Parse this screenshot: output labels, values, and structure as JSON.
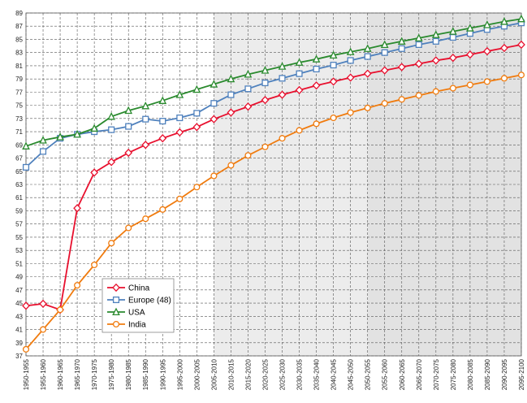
{
  "chart_data": {
    "type": "line",
    "title": "",
    "xlabel": "",
    "ylabel": "",
    "ylim": [
      37,
      89
    ],
    "y_ticks": [
      37,
      39,
      41,
      43,
      45,
      47,
      49,
      51,
      53,
      55,
      57,
      59,
      61,
      63,
      65,
      67,
      69,
      71,
      73,
      75,
      77,
      79,
      81,
      83,
      85,
      87,
      89
    ],
    "categories": [
      "1950-1955",
      "1955-1960",
      "1960-1965",
      "1965-1970",
      "1970-1975",
      "1975-1980",
      "1980-1985",
      "1985-1990",
      "1990-1995",
      "1995-2000",
      "2000-2005",
      "2005-2010",
      "2010-2015",
      "2015-2020",
      "2020-2025",
      "2025-2030",
      "2030-2035",
      "2035-2040",
      "2040-2045",
      "2045-2050",
      "2050-2055",
      "2055-2060",
      "2060-2065",
      "2065-2070",
      "2070-2075",
      "2075-2080",
      "2080-2085",
      "2085-2090",
      "2090-2095",
      "2095-2100"
    ],
    "grid": true,
    "legend_position": "bottom-left",
    "shaded_regions": [
      {
        "from": "2005-2010",
        "to": "2050-2055",
        "color": "#ececec"
      },
      {
        "from": "2050-2055",
        "to": "2095-2100",
        "color": "#e2e2e2"
      }
    ],
    "series": [
      {
        "name": "China",
        "color": "#e8102e",
        "marker": "diamond",
        "values": [
          44.6,
          44.9,
          44.0,
          59.4,
          64.8,
          66.4,
          67.8,
          69.0,
          70.0,
          70.9,
          71.7,
          72.9,
          73.9,
          74.8,
          75.8,
          76.6,
          77.3,
          78.0,
          78.6,
          79.2,
          79.8,
          80.3,
          80.8,
          81.3,
          81.8,
          82.2,
          82.7,
          83.2,
          83.7,
          84.2
        ]
      },
      {
        "name": "Europe (48)",
        "color": "#4f81bd",
        "marker": "square",
        "values": [
          65.6,
          68.0,
          70.0,
          70.6,
          71.0,
          71.3,
          71.8,
          72.9,
          72.6,
          73.1,
          73.8,
          75.3,
          76.6,
          77.5,
          78.4,
          79.1,
          79.8,
          80.5,
          81.1,
          81.8,
          82.4,
          83.0,
          83.6,
          84.2,
          84.7,
          85.3,
          85.9,
          86.5,
          87.0,
          87.5
        ]
      },
      {
        "name": "USA",
        "color": "#2a8a2e",
        "marker": "triangle",
        "values": [
          68.8,
          69.7,
          70.2,
          70.6,
          71.5,
          73.3,
          74.2,
          74.9,
          75.7,
          76.6,
          77.4,
          78.2,
          79.0,
          79.7,
          80.3,
          80.9,
          81.5,
          82.0,
          82.6,
          83.1,
          83.6,
          84.2,
          84.7,
          85.2,
          85.7,
          86.2,
          86.7,
          87.2,
          87.7,
          88.1
        ]
      },
      {
        "name": "India",
        "color": "#f07b0e",
        "marker": "circle",
        "values": [
          38.0,
          41.0,
          44.0,
          47.7,
          50.8,
          54.1,
          56.4,
          57.8,
          59.2,
          60.8,
          62.6,
          64.3,
          65.9,
          67.4,
          68.7,
          70.0,
          71.2,
          72.2,
          73.1,
          73.9,
          74.6,
          75.3,
          75.9,
          76.5,
          77.1,
          77.6,
          78.1,
          78.6,
          79.1,
          79.6
        ]
      }
    ]
  }
}
